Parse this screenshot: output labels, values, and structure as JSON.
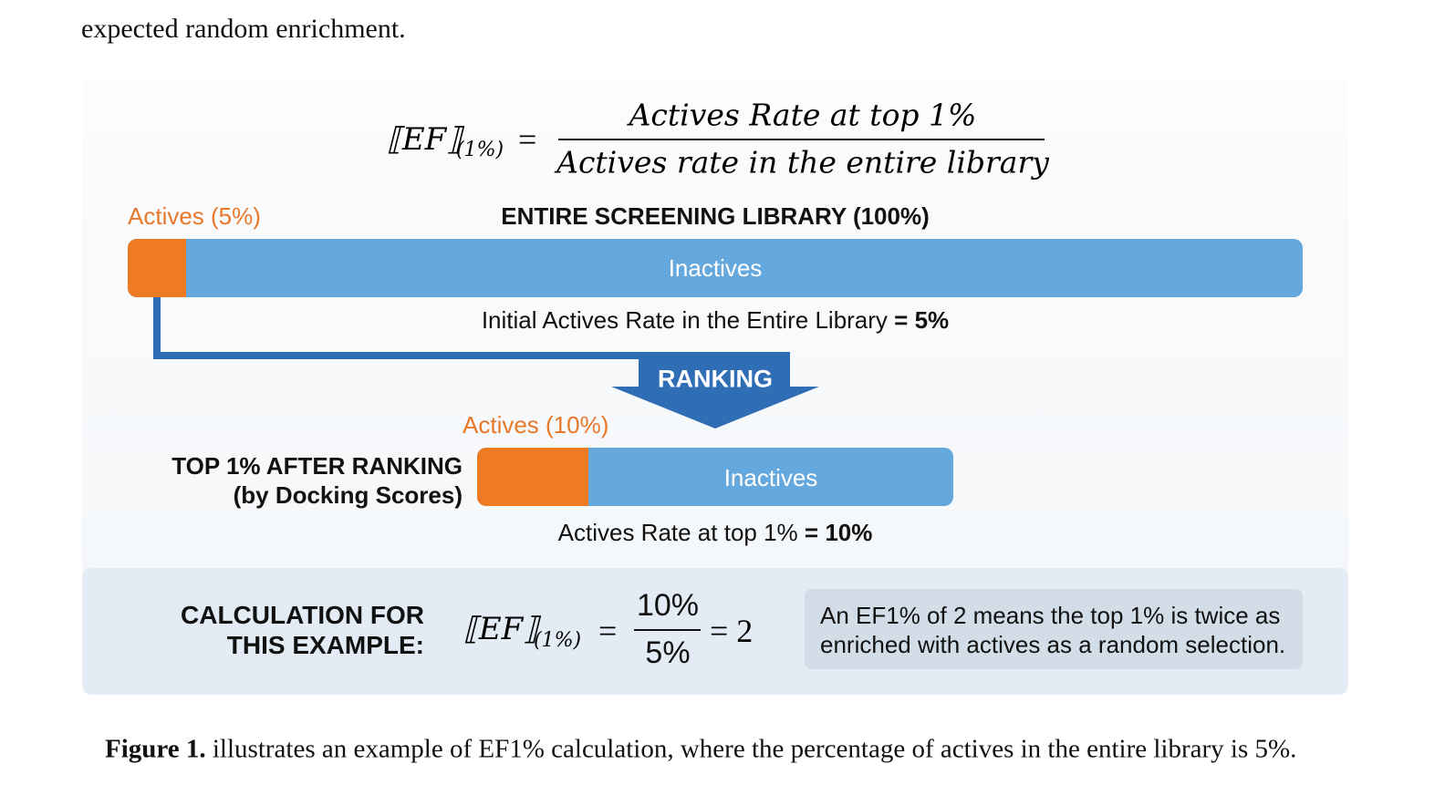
{
  "text_above": "expected random enrichment.",
  "figure": {
    "formula": {
      "lhs": "⟦EF⟧",
      "subscript": "(1%)",
      "equals": "=",
      "numerator": "Actives Rate at top 1%",
      "denominator": "Actives rate in the entire library"
    },
    "library": {
      "actives_label": "Actives (5%)",
      "title": "ENTIRE SCREENING LIBRARY (100%)",
      "bar_label": "Inactives",
      "rate_text": "Initial Actives Rate in the Entire Library",
      "rate_value": "= 5%"
    },
    "ranking": "RANKING",
    "top": {
      "actives_label": "Actives (10%)",
      "title_lines": [
        "TOP 1% AFTER RANKING",
        "(by Docking Scores)"
      ],
      "bar_label": "Inactives",
      "rate_text": "Actives Rate at top 1%",
      "rate_value": "= 10%"
    },
    "calculation": {
      "label_lines": [
        "CALCULATION FOR",
        "THIS EXAMPLE:"
      ],
      "lhs": "⟦EF⟧",
      "subscript": "(1%)",
      "equals": "=",
      "numerator": "10%",
      "denominator": "5%",
      "result": "= 2",
      "note_lines": [
        "An EF1% of 2 means the top 1% is twice as",
        "enriched with actives as a random selection."
      ]
    }
  },
  "caption": {
    "label": "Figure 1.",
    "text": "illustrates an example of EF1% calculation, where the percentage of actives in the entire library is 5%."
  }
}
